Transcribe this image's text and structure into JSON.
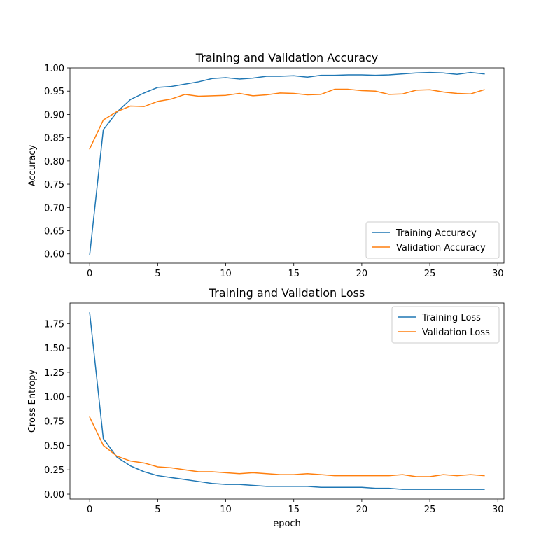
{
  "colors": {
    "training": "#1f77b4",
    "validation": "#ff7f0e"
  },
  "chart_data": [
    {
      "type": "line",
      "title": "Training and Validation Accuracy",
      "xlabel": "",
      "ylabel": "Accuracy",
      "xlim": [
        -1.45,
        30.45
      ],
      "ylim": [
        0.58,
        1.0
      ],
      "xticks": [
        0,
        5,
        10,
        15,
        20,
        25,
        30
      ],
      "yticks": [
        0.6,
        0.65,
        0.7,
        0.75,
        0.8,
        0.85,
        0.9,
        0.95,
        1.0
      ],
      "ytick_labels": [
        "0.60",
        "0.65",
        "0.70",
        "0.75",
        "0.80",
        "0.85",
        "0.90",
        "0.95",
        "1.00"
      ],
      "legend_position": "lower-right",
      "x": [
        0,
        1,
        2,
        3,
        4,
        5,
        6,
        7,
        8,
        9,
        10,
        11,
        12,
        13,
        14,
        15,
        16,
        17,
        18,
        19,
        20,
        21,
        22,
        23,
        24,
        25,
        26,
        27,
        28,
        29
      ],
      "series": [
        {
          "name": "Training Accuracy",
          "color_key": "training",
          "values": [
            0.598,
            0.867,
            0.905,
            0.932,
            0.946,
            0.958,
            0.96,
            0.965,
            0.97,
            0.977,
            0.979,
            0.976,
            0.978,
            0.982,
            0.982,
            0.983,
            0.98,
            0.984,
            0.984,
            0.985,
            0.985,
            0.984,
            0.985,
            0.987,
            0.989,
            0.99,
            0.989,
            0.986,
            0.99,
            0.987
          ]
        },
        {
          "name": "Validation Accuracy",
          "color_key": "validation",
          "values": [
            0.826,
            0.888,
            0.906,
            0.918,
            0.917,
            0.928,
            0.933,
            0.943,
            0.939,
            0.94,
            0.941,
            0.945,
            0.94,
            0.942,
            0.946,
            0.945,
            0.942,
            0.943,
            0.954,
            0.954,
            0.951,
            0.95,
            0.943,
            0.944,
            0.952,
            0.953,
            0.948,
            0.945,
            0.944,
            0.953
          ]
        }
      ]
    },
    {
      "type": "line",
      "title": "Training and Validation Loss",
      "xlabel": "epoch",
      "ylabel": "Cross Entropy",
      "xlim": [
        -1.45,
        30.45
      ],
      "ylim": [
        -0.05,
        1.96
      ],
      "xticks": [
        0,
        5,
        10,
        15,
        20,
        25,
        30
      ],
      "yticks": [
        0.0,
        0.25,
        0.5,
        0.75,
        1.0,
        1.25,
        1.5,
        1.75
      ],
      "ytick_labels": [
        "0.00",
        "0.25",
        "0.50",
        "0.75",
        "1.00",
        "1.25",
        "1.50",
        "1.75"
      ],
      "legend_position": "upper-right",
      "x": [
        0,
        1,
        2,
        3,
        4,
        5,
        6,
        7,
        8,
        9,
        10,
        11,
        12,
        13,
        14,
        15,
        16,
        17,
        18,
        19,
        20,
        21,
        22,
        23,
        24,
        25,
        26,
        27,
        28,
        29
      ],
      "series": [
        {
          "name": "Training Loss",
          "color_key": "training",
          "values": [
            1.86,
            0.57,
            0.38,
            0.29,
            0.23,
            0.19,
            0.17,
            0.15,
            0.13,
            0.11,
            0.1,
            0.1,
            0.09,
            0.08,
            0.08,
            0.08,
            0.08,
            0.07,
            0.07,
            0.07,
            0.07,
            0.06,
            0.06,
            0.05,
            0.05,
            0.05,
            0.05,
            0.05,
            0.05,
            0.05
          ]
        },
        {
          "name": "Validation Loss",
          "color_key": "validation",
          "values": [
            0.79,
            0.5,
            0.39,
            0.34,
            0.32,
            0.28,
            0.27,
            0.25,
            0.23,
            0.23,
            0.22,
            0.21,
            0.22,
            0.21,
            0.2,
            0.2,
            0.21,
            0.2,
            0.19,
            0.19,
            0.19,
            0.19,
            0.19,
            0.2,
            0.18,
            0.18,
            0.2,
            0.19,
            0.2,
            0.19
          ]
        }
      ]
    }
  ]
}
